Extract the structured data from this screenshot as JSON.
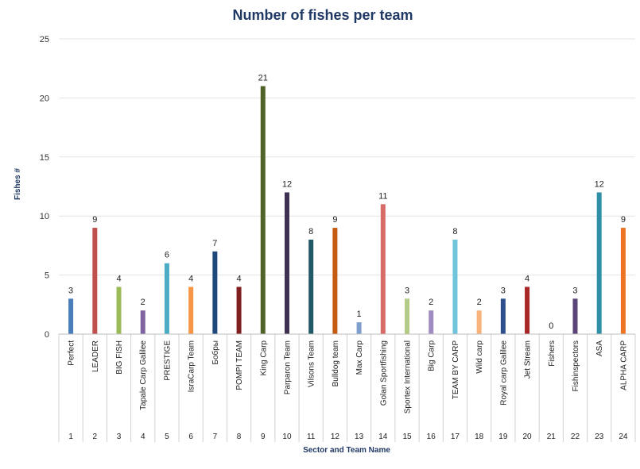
{
  "chart_data": {
    "type": "bar",
    "title": "Number of fishes per team",
    "ylabel": "Fishes #",
    "xlabel": "Sector and Team Name",
    "ylim": [
      0,
      25
    ],
    "yticks": [
      0,
      5,
      10,
      15,
      20,
      25
    ],
    "grid": true,
    "data_labels": true,
    "sectors": [
      "1",
      "2",
      "3",
      "4",
      "5",
      "6",
      "7",
      "8",
      "9",
      "10",
      "11",
      "12",
      "13",
      "14",
      "15",
      "16",
      "17",
      "18",
      "19",
      "20",
      "21",
      "22",
      "23",
      "24"
    ],
    "categories": [
      "Perfect",
      "LEADER",
      "BIG FISH",
      "Tapale Carp Galilee",
      "PRESTIGE",
      "IsraCarp Team",
      "Бобры",
      "POMPI TEAM",
      "King Carp",
      "Parparon Team",
      "Vilsons Team",
      "Bulldog team",
      "Max Carp",
      "Golan Sportfishing",
      "Sportex International",
      "Big Carp",
      "TEAM BY CARP",
      "Wild carp",
      "Royal carp Galilee",
      "Jet Stream",
      "Fishers",
      "Fishinspectors",
      "ASA",
      "ALPHA CARP"
    ],
    "values": [
      3,
      9,
      4,
      2,
      6,
      4,
      7,
      4,
      21,
      12,
      8,
      9,
      1,
      11,
      3,
      2,
      8,
      2,
      3,
      4,
      0,
      3,
      12,
      9
    ],
    "colors": [
      "#4a7ebb",
      "#c0504d",
      "#9bbb59",
      "#8064a2",
      "#4bacc6",
      "#f79646",
      "#1f497d",
      "#7f1f1f",
      "#4f6228",
      "#3f3151",
      "#215967",
      "#c55a11",
      "#7f9fcf",
      "#d86b68",
      "#b3cc85",
      "#a08cc0",
      "#70c4dc",
      "#f9b37a",
      "#2e4f8c",
      "#a82828",
      "#6e8c38",
      "#5a4478",
      "#2e8fa6",
      "#ee7424"
    ]
  }
}
